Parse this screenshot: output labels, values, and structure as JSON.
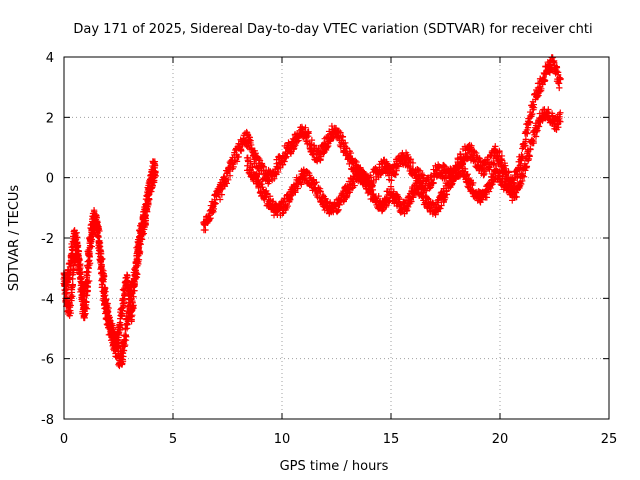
{
  "chart_data": {
    "type": "scatter",
    "title": "Day 171 of 2025, Sidereal Day-to-day VTEC variation (SDTVAR) for receiver chti",
    "xlabel": "GPS time / hours",
    "ylabel": "SDTVAR / TECUs",
    "xlim": [
      0,
      25
    ],
    "ylim": [
      -8,
      4
    ],
    "xticks": [
      0,
      5,
      10,
      15,
      20,
      25
    ],
    "yticks": [
      -8,
      -6,
      -4,
      -2,
      0,
      2,
      4
    ],
    "grid": true,
    "marker": "+",
    "color": "#ff0000",
    "series": [
      {
        "name": "SDTVAR",
        "bands": [
          {
            "x": [
              0.0,
              0.1,
              0.2,
              0.3,
              0.4,
              0.5,
              0.6,
              0.7,
              0.8,
              0.9,
              1.0,
              1.1,
              1.2,
              1.3,
              1.4,
              1.5,
              1.6,
              1.7,
              1.8,
              1.9,
              2.0,
              2.1,
              2.2,
              2.3,
              2.4,
              2.5,
              2.6,
              2.7,
              2.8,
              2.9,
              3.0,
              3.1,
              3.2,
              3.3,
              3.4,
              3.5,
              3.6,
              3.7,
              3.8,
              3.9,
              4.0,
              4.1,
              4.2
            ],
            "y": [
              -3.6,
              -4.0,
              -4.4,
              -4.2,
              -3.3,
              -2.6,
              -2.4,
              -3.0,
              -3.9,
              -4.5,
              -4.3,
              -3.5,
              -2.4,
              -1.7,
              -1.4,
              -1.6,
              -2.2,
              -3.0,
              -3.8,
              -4.4,
              -4.7,
              -5.0,
              -5.3,
              -5.5,
              -5.7,
              -5.9,
              -6.0,
              -5.8,
              -5.3,
              -4.7,
              -4.4,
              -4.5,
              -3.9,
              -3.2,
              -2.6,
              -2.1,
              -1.7,
              -1.4,
              -1.0,
              -0.6,
              -0.2,
              0.1,
              0.2
            ],
            "spread": 0.6
          },
          {
            "x": [
              0.0,
              0.1,
              0.2,
              0.3,
              0.4,
              0.5,
              0.6,
              0.7,
              0.8,
              0.9,
              1.0,
              1.1,
              1.2,
              1.3,
              1.4,
              1.5,
              1.6,
              1.7,
              1.8,
              1.9,
              2.0,
              2.1,
              2.2,
              2.3,
              2.4,
              2.5,
              2.6,
              2.7,
              2.8,
              2.9,
              3.0,
              3.1,
              3.2,
              3.3,
              3.4,
              3.5,
              3.6,
              3.7,
              3.8,
              3.9,
              4.0,
              4.1,
              4.2
            ],
            "y": [
              -3.2,
              -3.6,
              -3.2,
              -2.8,
              -2.2,
              -1.9,
              -2.1,
              -2.8,
              -3.6,
              -4.0,
              -3.6,
              -2.8,
              -2.0,
              -1.5,
              -1.3,
              -1.5,
              -2.0,
              -2.6,
              -3.3,
              -4.0,
              -4.4,
              -4.8,
              -5.1,
              -5.4,
              -5.4,
              -5.2,
              -4.7,
              -4.1,
              -3.6,
              -3.3,
              -3.9,
              -3.8,
              -3.3,
              -2.8,
              -2.2,
              -1.8,
              -1.5,
              -1.2,
              -0.8,
              -0.4,
              0.0,
              0.3,
              0.3
            ],
            "spread": 0.5
          },
          {
            "x": [
              6.4,
              6.6,
              6.8,
              7.0,
              7.2,
              7.4,
              7.6,
              7.8,
              8.0,
              8.2,
              8.4,
              8.6,
              8.8,
              9.0,
              9.2,
              9.4,
              9.6,
              9.8,
              10.0,
              10.2,
              10.4,
              10.6,
              10.8,
              11.0,
              11.2,
              11.4,
              11.6,
              11.8,
              12.0,
              12.2,
              12.4,
              12.6,
              12.8,
              13.0,
              13.2,
              13.4,
              13.6,
              13.8,
              14.0,
              14.2,
              14.4,
              14.6,
              14.8,
              15.0,
              15.2,
              15.4,
              15.6,
              15.8,
              16.0,
              16.2,
              16.4,
              16.6,
              16.8,
              17.0,
              17.2,
              17.4,
              17.6,
              17.8,
              18.0,
              18.2,
              18.4,
              18.6,
              18.8,
              19.0,
              19.2,
              19.4,
              19.6,
              19.8,
              20.0,
              20.2,
              20.4,
              20.6,
              20.8,
              21.0,
              21.2,
              21.4,
              21.6,
              21.8,
              22.0,
              22.2,
              22.4,
              22.6,
              22.8
            ],
            "y": [
              -1.7,
              -1.3,
              -1.0,
              -0.7,
              -0.4,
              -0.1,
              0.3,
              0.6,
              0.9,
              1.2,
              1.3,
              1.0,
              0.6,
              0.3,
              0.1,
              0.0,
              0.1,
              0.4,
              0.6,
              0.9,
              1.0,
              1.2,
              1.4,
              1.5,
              1.3,
              1.0,
              0.7,
              0.8,
              1.1,
              1.4,
              1.6,
              1.4,
              1.1,
              0.8,
              0.5,
              0.3,
              0.1,
              -0.1,
              -0.2,
              0.0,
              0.2,
              0.4,
              0.3,
              0.1,
              0.3,
              0.5,
              0.7,
              0.5,
              0.3,
              0.1,
              -0.1,
              -0.2,
              -0.1,
              0.1,
              0.3,
              0.2,
              0.0,
              0.1,
              0.3,
              0.6,
              0.8,
              0.9,
              0.7,
              0.5,
              0.3,
              0.4,
              0.6,
              0.8,
              0.6,
              0.3,
              0.0,
              -0.2,
              0.2,
              0.8,
              1.5,
              2.1,
              2.6,
              3.0,
              3.3,
              3.6,
              3.8,
              3.5,
              3.0
            ],
            "spread": 0.5
          },
          {
            "x": [
              8.4,
              8.6,
              8.8,
              9.0,
              9.2,
              9.4,
              9.6,
              9.8,
              10.0,
              10.2,
              10.4,
              10.6,
              10.8,
              11.0,
              11.2,
              11.4,
              11.6,
              11.8,
              12.0,
              12.2,
              12.4,
              12.6,
              12.8,
              13.0,
              13.2,
              13.4,
              13.6,
              13.8,
              14.0,
              14.2,
              14.4,
              14.6,
              14.8,
              15.0,
              15.2,
              15.4,
              15.6,
              15.8,
              16.0,
              16.2,
              16.4,
              16.6,
              16.8,
              17.0,
              17.2,
              17.4,
              17.6,
              17.8,
              18.0,
              18.2,
              18.4,
              18.6,
              18.8,
              19.0,
              19.2,
              19.4,
              19.6,
              19.8,
              20.0,
              20.2,
              20.4,
              20.6,
              20.8,
              21.0,
              21.2,
              21.4,
              21.6,
              21.8,
              22.0,
              22.2,
              22.4,
              22.6,
              22.8
            ],
            "y": [
              0.5,
              0.2,
              0.0,
              -0.3,
              -0.6,
              -0.8,
              -1.0,
              -1.1,
              -1.0,
              -0.8,
              -0.6,
              -0.3,
              -0.1,
              0.1,
              0.0,
              -0.2,
              -0.4,
              -0.6,
              -0.9,
              -1.0,
              -1.0,
              -0.9,
              -0.6,
              -0.4,
              -0.2,
              0.0,
              0.1,
              -0.1,
              -0.4,
              -0.6,
              -0.8,
              -0.9,
              -0.7,
              -0.5,
              -0.7,
              -0.9,
              -1.0,
              -0.8,
              -0.5,
              -0.3,
              -0.5,
              -0.8,
              -1.0,
              -1.1,
              -0.9,
              -0.6,
              -0.3,
              0.0,
              0.2,
              0.3,
              0.1,
              -0.2,
              -0.4,
              -0.6,
              -0.7,
              -0.4,
              -0.1,
              0.2,
              0.0,
              -0.2,
              -0.4,
              -0.6,
              -0.4,
              0.0,
              0.5,
              1.0,
              1.5,
              1.9,
              2.2,
              2.1,
              1.9,
              1.8,
              2.0
            ],
            "spread": 0.45
          }
        ]
      }
    ]
  }
}
